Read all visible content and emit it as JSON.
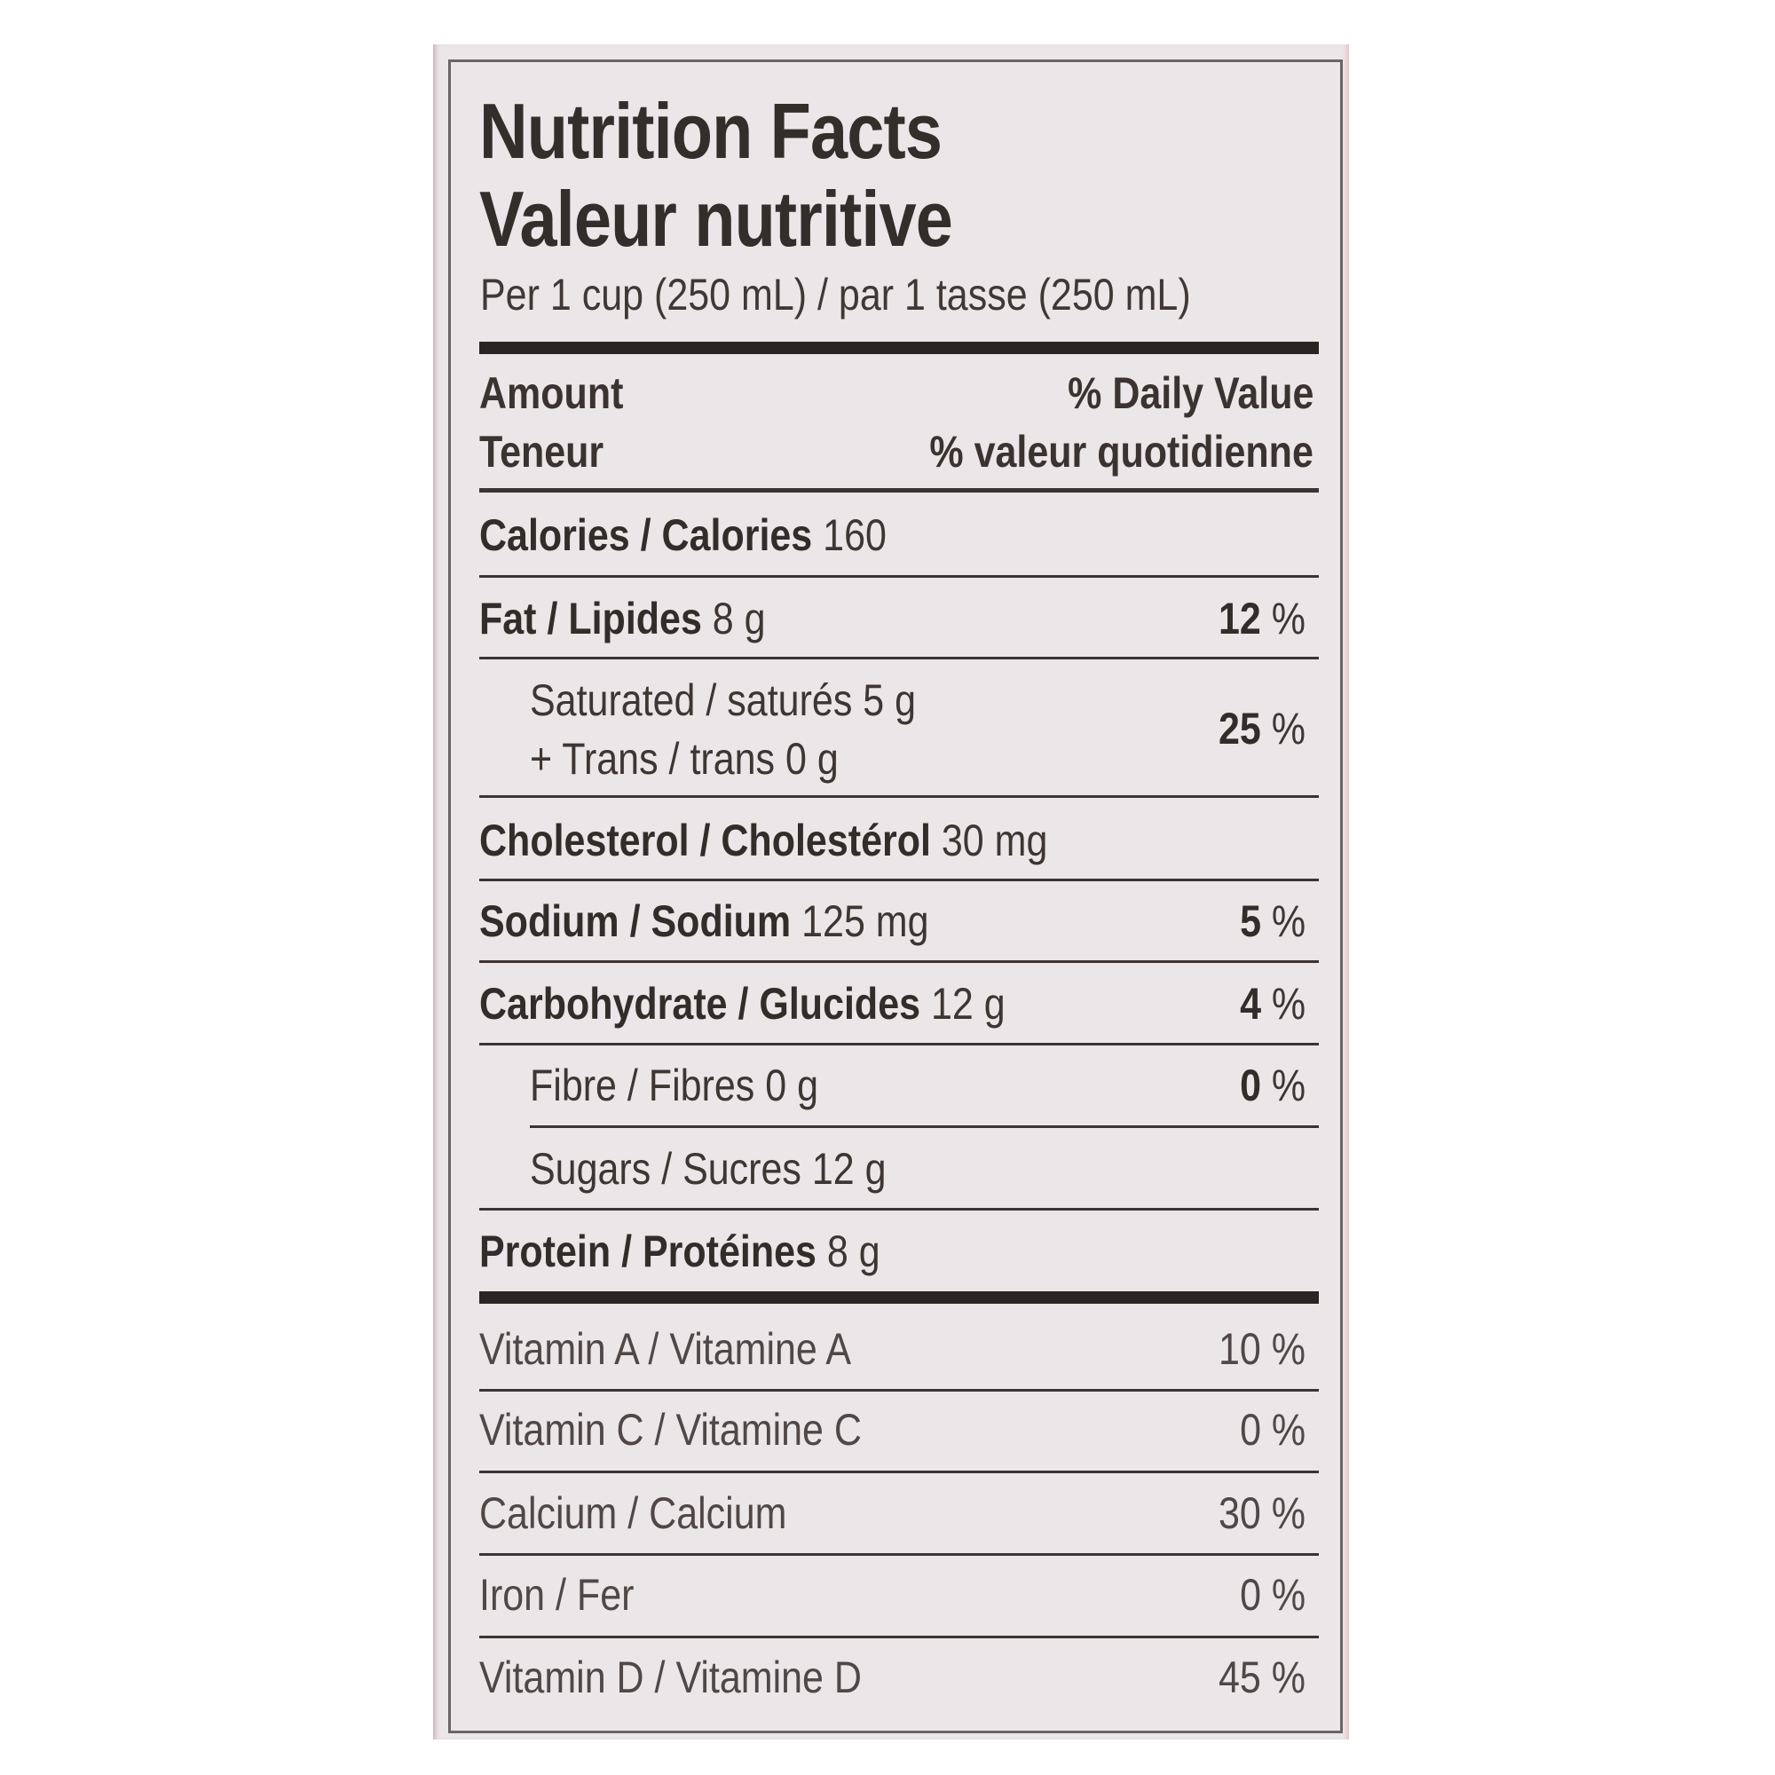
{
  "title": {
    "en": "Nutrition Facts",
    "fr": "Valeur nutritive"
  },
  "serving": "Per 1 cup (250 mL) / par 1 tasse (250 mL)",
  "header": {
    "amount_en": "Amount",
    "amount_fr": "Teneur",
    "dv_en": "% Daily Value",
    "dv_fr": "% valeur quotidienne"
  },
  "nutrients": {
    "calories": {
      "label": "Calories / Calories",
      "amount": " 160"
    },
    "fat": {
      "label": "Fat / Lipides",
      "amount": " 8 g",
      "dv_num": "12",
      "dv_unit": " %"
    },
    "saturated": {
      "line1": "Saturated / saturés 5 g",
      "line2": "+ Trans / trans 0 g",
      "dv_num": "25",
      "dv_unit": " %"
    },
    "cholesterol": {
      "label": "Cholesterol / Cholestérol",
      "amount": " 30 mg"
    },
    "sodium": {
      "label": "Sodium / Sodium",
      "amount": " 125 mg",
      "dv_num": "5",
      "dv_unit": " %"
    },
    "carbohydrate": {
      "label": "Carbohydrate / Glucides",
      "amount": " 12 g",
      "dv_num": "4",
      "dv_unit": " %"
    },
    "fibre": {
      "label": "Fibre / Fibres 0 g",
      "dv_num": "0",
      "dv_unit": " %"
    },
    "sugars": {
      "label": "Sugars / Sucres 12 g"
    },
    "protein": {
      "label": "Protein / Protéines",
      "amount": " 8 g"
    }
  },
  "vitamins": {
    "vitamin_a": {
      "label": "Vitamin A / Vitamine A",
      "dv": "10 %"
    },
    "vitamin_c": {
      "label": "Vitamin C / Vitamine C",
      "dv": "0 %"
    },
    "calcium": {
      "label": "Calcium / Calcium",
      "dv": "30 %"
    },
    "iron": {
      "label": "Iron / Fer",
      "dv": "0 %"
    },
    "vitamin_d": {
      "label": "Vitamin D / Vitamine D",
      "dv": "45 %"
    }
  }
}
